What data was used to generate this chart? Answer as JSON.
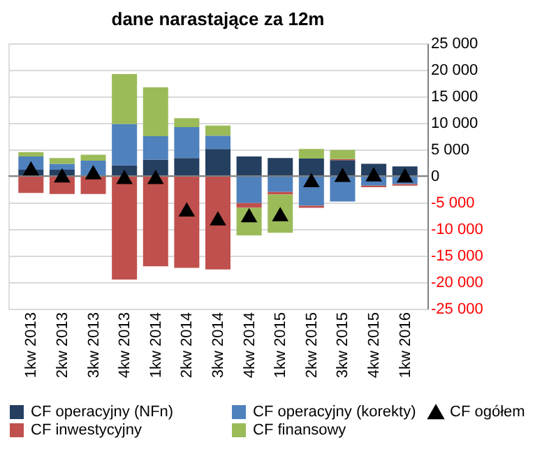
{
  "chart_data": {
    "type": "bar",
    "title": "dane narastające za 12m",
    "stacked": true,
    "categories": [
      "1kw 2013",
      "2kw 2013",
      "3kw 2013",
      "4kw 2013",
      "1kw 2014",
      "2kw 2014",
      "3kw 2014",
      "4kw 2014",
      "1kw 2015",
      "2kw 2015",
      "3kw 2015",
      "4kw 2015",
      "1kw 2016"
    ],
    "series": [
      {
        "name": "CF operacyjny (NFn)",
        "color": "#243f60",
        "values": [
          1200,
          1200,
          0,
          2000,
          3100,
          3400,
          5100,
          3700,
          3400,
          3300,
          3000,
          2300,
          1800
        ]
      },
      {
        "name": "CF operacyjny (korekty)",
        "color": "#4f81bd",
        "values": [
          2500,
          1100,
          2900,
          7800,
          4400,
          5800,
          2500,
          -5100,
          -3000,
          -5600,
          -4800,
          -1800,
          -1500
        ]
      },
      {
        "name": "CF inwestycyjny",
        "color": "#c0504d",
        "values": [
          -3200,
          -3400,
          -3400,
          -19500,
          -17000,
          -17300,
          -17600,
          -900,
          -500,
          -400,
          200,
          -300,
          -300
        ]
      },
      {
        "name": "CF finansowy",
        "color": "#9bbb59",
        "values": [
          800,
          1100,
          1100,
          9400,
          9200,
          1700,
          1900,
          -5200,
          -7200,
          1800,
          1700,
          0,
          0
        ]
      },
      {
        "name": "CF ogółem",
        "color": "#000000",
        "type": "scatter",
        "marker": "triangle",
        "values": [
          1300,
          0,
          600,
          -300,
          -300,
          -6400,
          -8100,
          -7500,
          -7300,
          -900,
          100,
          200,
          0
        ]
      }
    ],
    "ylim": [
      -25000,
      25000
    ],
    "yticks": [
      {
        "value": -25000,
        "label": "-25 000"
      },
      {
        "value": -20000,
        "label": "-20 000"
      },
      {
        "value": -15000,
        "label": "-15 000"
      },
      {
        "value": -10000,
        "label": "-10 000"
      },
      {
        "value": -5000,
        "label": "-5 000"
      },
      0,
      {
        "value": 5000,
        "label": "5 000"
      },
      {
        "value": 10000,
        "label": "10 000"
      },
      {
        "value": 15000,
        "label": "15 000"
      },
      {
        "value": 20000,
        "label": "20 000"
      },
      {
        "value": 25000,
        "label": "25 000"
      }
    ],
    "grid": "y",
    "legend": "bottom"
  }
}
